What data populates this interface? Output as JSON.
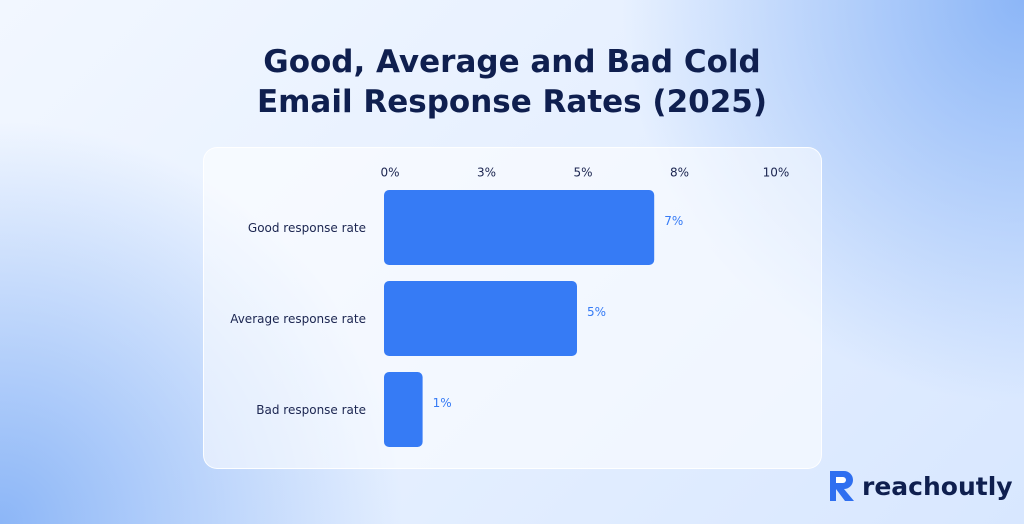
{
  "chart_data": {
    "type": "bar",
    "orientation": "horizontal",
    "title": "Good, Average and Bad Cold Email Response Rates (2025)",
    "categories": [
      "Good response rate",
      "Average response rate",
      "Bad response rate"
    ],
    "values": [
      7,
      5,
      1
    ],
    "value_labels": [
      "7%",
      "5%",
      "1%"
    ],
    "color": "#367bf5",
    "xlim": [
      0,
      10
    ],
    "xticks": [
      {
        "value": 0,
        "label": "0%"
      },
      {
        "value": 2.5,
        "label": "3%"
      },
      {
        "value": 5,
        "label": "5%"
      },
      {
        "value": 7.5,
        "label": "8%"
      },
      {
        "value": 10,
        "label": "10%"
      }
    ]
  },
  "brand": "reachoutly"
}
